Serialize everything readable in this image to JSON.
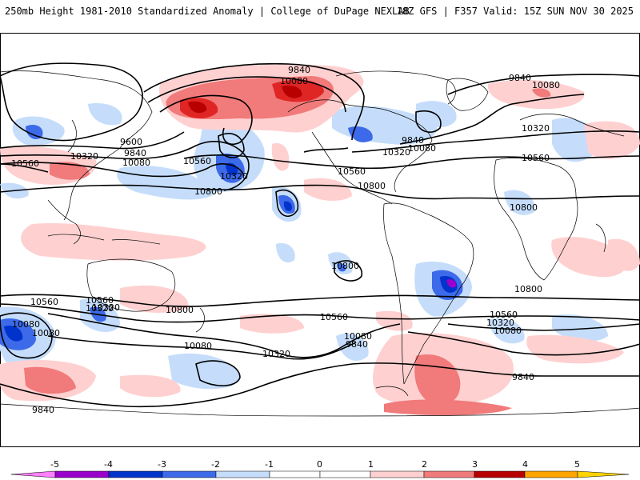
{
  "header": {
    "left": "250mb Height 1981-2010 Standardized Anomaly | College of DuPage NEXLAB",
    "right": "18Z GFS | F357 Valid: 15Z SUN NOV 30 2025"
  },
  "colors": {
    "neg5": "#ff80ff",
    "neg4": "#9900cc",
    "neg3": "#0033cc",
    "neg2": "#3d6ae8",
    "neg1": "#c5ddfb",
    "zero": "#ffffff",
    "pos1": "#ffd0d0",
    "pos2": "#f17a7a",
    "pos3": "#e02525",
    "pos4": "#b80000",
    "pos5": "#ffa500",
    "coast": "#000000",
    "contour": "#000000"
  },
  "contour_labels": [
    "9840",
    "10080",
    "9840",
    "10080",
    "9600",
    "9840",
    "10080",
    "10320",
    "10560",
    "10560",
    "10320",
    "10800",
    "10320",
    "10080",
    "9840",
    "10560",
    "10800",
    "10800",
    "10320",
    "10560",
    "10800",
    "10560",
    "10800",
    "10080",
    "10320",
    "10560",
    "10080",
    "10320",
    "10800",
    "10560",
    "10080",
    "9840",
    "10320",
    "10080",
    "9840",
    "10560",
    "10320",
    "10080",
    "9840"
  ],
  "colorbar": {
    "ticks": [
      "-5",
      "-4",
      "-3",
      "-2",
      "-1",
      "0",
      "1",
      "2",
      "3",
      "4",
      "5"
    ]
  }
}
